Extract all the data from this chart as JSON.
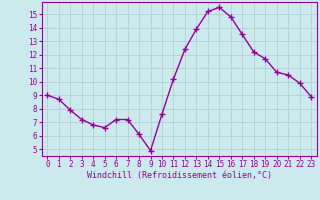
{
  "x": [
    0,
    1,
    2,
    3,
    4,
    5,
    6,
    7,
    8,
    9,
    10,
    11,
    12,
    13,
    14,
    15,
    16,
    17,
    18,
    19,
    20,
    21,
    22,
    23
  ],
  "y": [
    9,
    8.7,
    7.9,
    7.2,
    6.8,
    6.6,
    7.2,
    7.2,
    6.1,
    4.9,
    7.6,
    10.2,
    12.4,
    13.9,
    15.2,
    15.5,
    14.8,
    13.5,
    12.2,
    11.7,
    10.7,
    10.5,
    9.9,
    8.9
  ],
  "line_color": "#990099",
  "marker": "+",
  "marker_size": 4,
  "marker_linewidth": 1.0,
  "line_width": 1.0,
  "background_color": "#cce9ee",
  "grid_color": "#aacccc",
  "xlabel": "Windchill (Refroidissement éolien,°C)",
  "xlabel_color": "#990099",
  "tick_color": "#990099",
  "xlim": [
    -0.5,
    23.5
  ],
  "ylim": [
    4.5,
    15.9
  ],
  "yticks": [
    5,
    6,
    7,
    8,
    9,
    10,
    11,
    12,
    13,
    14,
    15
  ],
  "xticks": [
    0,
    1,
    2,
    3,
    4,
    5,
    6,
    7,
    8,
    9,
    10,
    11,
    12,
    13,
    14,
    15,
    16,
    17,
    18,
    19,
    20,
    21,
    22,
    23
  ],
  "label_fontsize": 6.0,
  "tick_fontsize": 5.5
}
